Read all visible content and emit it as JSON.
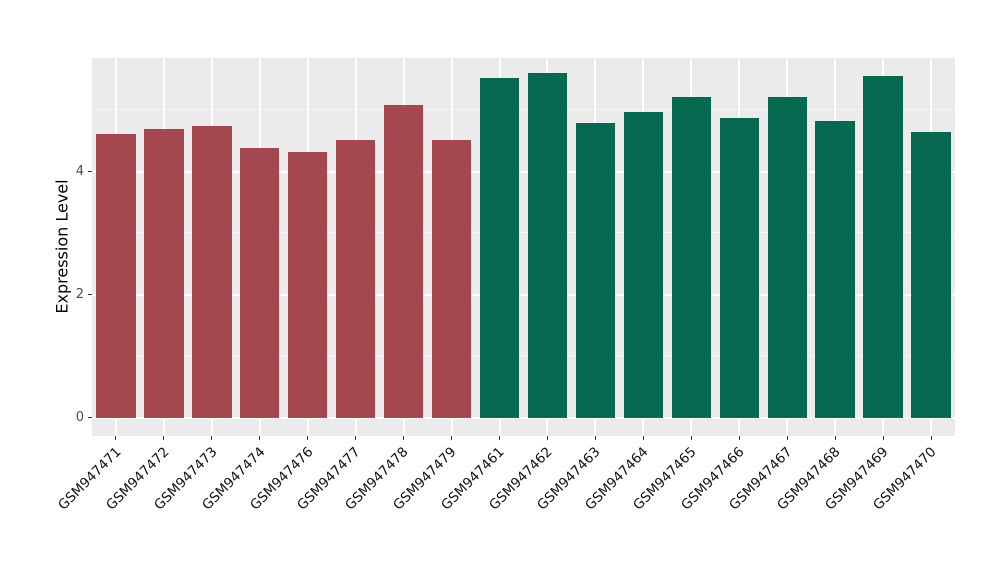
{
  "chart_data": {
    "type": "bar",
    "title": "",
    "xlabel": "",
    "ylabel": "Expression Level",
    "categories": [
      "GSM947471",
      "GSM947472",
      "GSM947473",
      "GSM947474",
      "GSM947476",
      "GSM947477",
      "GSM947478",
      "GSM947479",
      "GSM947461",
      "GSM947462",
      "GSM947463",
      "GSM947464",
      "GSM947465",
      "GSM947466",
      "GSM947467",
      "GSM947468",
      "GSM947469",
      "GSM947470"
    ],
    "values": [
      4.62,
      4.7,
      4.75,
      4.38,
      4.32,
      4.52,
      5.08,
      4.52,
      5.52,
      5.6,
      4.8,
      4.97,
      5.22,
      4.88,
      5.22,
      4.83,
      5.55,
      4.65
    ],
    "bar_colors": [
      "#A5474F",
      "#A5474F",
      "#A5474F",
      "#A5474F",
      "#A5474F",
      "#A5474F",
      "#A5474F",
      "#A5474F",
      "#07694F",
      "#07694F",
      "#07694F",
      "#07694F",
      "#07694F",
      "#07694F",
      "#07694F",
      "#07694F",
      "#07694F",
      "#07694F"
    ],
    "group_colors": {
      "left_group": "#A5474F",
      "right_group": "#07694F"
    },
    "yticks": [
      0,
      2,
      4
    ],
    "minor_yticks": [
      1,
      3,
      5
    ],
    "ylim": [
      -0.3,
      5.85
    ],
    "grid": "on",
    "legend": "none",
    "panel_background": "#EBEBEB",
    "grid_major_color": "#FFFFFF",
    "grid_minor_color": "#F5F5F5",
    "axis_text_color": "#4D4D4D",
    "tick_color": "#333333"
  }
}
